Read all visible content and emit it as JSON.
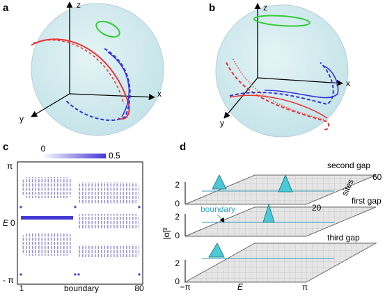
{
  "panel_a": {
    "label": "a",
    "axis_z": "z",
    "axis_x": "x",
    "axis_y": "y"
  },
  "panel_b": {
    "label": "b",
    "axis_z": "z",
    "axis_x": "x",
    "axis_y": "y"
  },
  "panel_c": {
    "label": "c",
    "colorbar_min": "0",
    "colorbar_max": "0.5",
    "y_labels": [
      "π",
      "0",
      "- π"
    ],
    "y_title": "E",
    "x_labels": [
      "1",
      "80"
    ],
    "x_title": "boundary"
  },
  "panel_d": {
    "label": "d",
    "layer_labels": [
      "second gap",
      "first gap",
      "third gap"
    ],
    "z_ticks": [
      "2",
      "0"
    ],
    "z_title": "|α̃|²",
    "sites_title": "sites",
    "site_ticks": [
      "60",
      "20"
    ],
    "boundary": "boundary",
    "x_ticks": [
      "−π",
      "π"
    ],
    "x_title": "E"
  }
}
